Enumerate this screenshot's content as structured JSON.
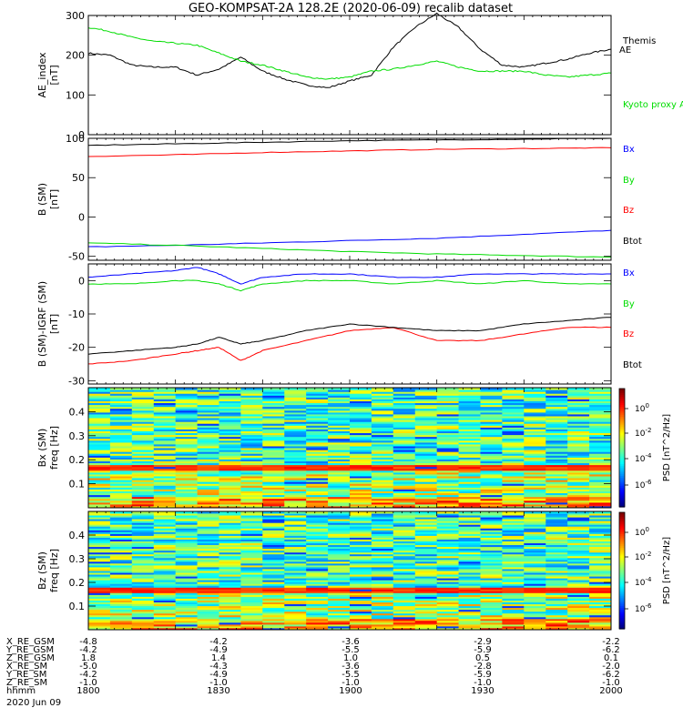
{
  "title": "GEO-KOMPSAT-2A 128.2E (2020-06-09) recalib dataset",
  "colors": {
    "black": "#000000",
    "red": "#ff0000",
    "green": "#00dd00",
    "blue": "#0000ff"
  },
  "chart_data": [
    {
      "type": "line",
      "ylabel": [
        "AE_index",
        "[nT]"
      ],
      "ylim": [
        0,
        300
      ],
      "yticks": [
        0,
        100,
        200,
        300
      ],
      "xlim_min": [
        0,
        120
      ],
      "series": [
        {
          "name": "Themis AE",
          "color": "black",
          "x": [
            0,
            5,
            10,
            15,
            20,
            25,
            30,
            35,
            40,
            45,
            50,
            55,
            60,
            65,
            70,
            75,
            80,
            85,
            90,
            95,
            100,
            105,
            110,
            115,
            120
          ],
          "y": [
            205,
            200,
            175,
            170,
            170,
            150,
            165,
            195,
            160,
            140,
            125,
            118,
            135,
            150,
            220,
            270,
            305,
            270,
            215,
            175,
            170,
            180,
            190,
            205,
            215
          ]
        },
        {
          "name": "Kyoto proxy AE",
          "color": "green",
          "x": [
            0,
            5,
            10,
            15,
            20,
            25,
            30,
            35,
            40,
            45,
            50,
            55,
            60,
            65,
            70,
            75,
            80,
            85,
            90,
            95,
            100,
            105,
            110,
            115,
            120
          ],
          "y": [
            270,
            260,
            245,
            235,
            230,
            225,
            205,
            185,
            175,
            160,
            145,
            140,
            145,
            160,
            165,
            175,
            185,
            170,
            160,
            160,
            160,
            150,
            145,
            150,
            155
          ]
        }
      ]
    },
    {
      "type": "line",
      "ylabel": [
        "B (SM)",
        "[nT]"
      ],
      "ylim": [
        -55,
        100
      ],
      "yticks": [
        -50,
        0,
        50,
        100
      ],
      "series": [
        {
          "name": "Bx",
          "color": "blue",
          "x": [
            0,
            20,
            40,
            60,
            80,
            100,
            120
          ],
          "y": [
            -38,
            -36,
            -33,
            -30,
            -27,
            -22,
            -17
          ]
        },
        {
          "name": "By",
          "color": "green",
          "x": [
            0,
            20,
            40,
            60,
            80,
            100,
            120
          ],
          "y": [
            -33,
            -36,
            -40,
            -44,
            -47,
            -49,
            -51
          ]
        },
        {
          "name": "Bz",
          "color": "red",
          "x": [
            0,
            20,
            40,
            60,
            80,
            100,
            120
          ],
          "y": [
            77,
            79,
            82,
            84,
            86,
            87,
            88
          ]
        },
        {
          "name": "Btot",
          "color": "black",
          "x": [
            0,
            20,
            40,
            60,
            80,
            100,
            120
          ],
          "y": [
            91,
            93,
            95,
            97,
            98,
            99,
            100
          ]
        }
      ]
    },
    {
      "type": "line",
      "ylabel": [
        "B (SM)-IGRF (SM)",
        "[nT]"
      ],
      "ylim": [
        -31,
        5
      ],
      "yticks": [
        -30,
        -20,
        -10,
        0
      ],
      "series": [
        {
          "name": "Bx",
          "color": "blue",
          "x": [
            0,
            10,
            20,
            25,
            30,
            35,
            40,
            50,
            60,
            70,
            80,
            90,
            100,
            110,
            120
          ],
          "y": [
            1,
            2,
            3,
            4,
            2,
            -1,
            1,
            2,
            2,
            1,
            1,
            2,
            2,
            2,
            2
          ]
        },
        {
          "name": "By",
          "color": "green",
          "x": [
            0,
            10,
            20,
            25,
            30,
            35,
            40,
            50,
            60,
            70,
            80,
            90,
            100,
            110,
            120
          ],
          "y": [
            -1,
            -1,
            0,
            0,
            -1,
            -3,
            -1,
            0,
            0,
            -1,
            0,
            -1,
            0,
            -1,
            -1
          ]
        },
        {
          "name": "Bz",
          "color": "red",
          "x": [
            0,
            10,
            20,
            25,
            30,
            35,
            40,
            50,
            60,
            70,
            80,
            90,
            100,
            110,
            120
          ],
          "y": [
            -25,
            -24,
            -22,
            -21,
            -20,
            -24,
            -21,
            -18,
            -15,
            -14,
            -18,
            -18,
            -16,
            -14,
            -14
          ]
        },
        {
          "name": "Btot",
          "color": "black",
          "x": [
            0,
            10,
            20,
            25,
            30,
            35,
            40,
            50,
            60,
            70,
            80,
            90,
            100,
            110,
            120
          ],
          "y": [
            -22,
            -21,
            -20,
            -19,
            -17,
            -19,
            -18,
            -15,
            -13,
            -14,
            -15,
            -15,
            -13,
            -12,
            -11
          ]
        }
      ]
    },
    {
      "type": "heatmap",
      "ylabel": [
        "Bx (SM)",
        "freq [Hz]"
      ],
      "ylim": [
        0,
        0.5
      ],
      "yticks": [
        0.1,
        0.2,
        0.3,
        0.4
      ],
      "band_hz": 0.165,
      "colorbar": {
        "label": "PSD [nT^2/Hz]",
        "ticks": [
          "10^0",
          "10^-2",
          "10^-4",
          "10^-6"
        ]
      }
    },
    {
      "type": "heatmap",
      "ylabel": [
        "Bz (SM)",
        "freq [Hz]"
      ],
      "ylim": [
        0,
        0.5
      ],
      "yticks": [
        0.1,
        0.2,
        0.3,
        0.4
      ],
      "band_hz": 0.165,
      "colorbar": {
        "label": "PSD [nT^2/Hz]",
        "ticks": [
          "10^0",
          "10^-2",
          "10^-4",
          "10^-6"
        ]
      }
    }
  ],
  "orbit_table": {
    "rows": [
      {
        "label": "X_RE_GSM",
        "values": [
          "-4.8",
          "-4.2",
          "-3.6",
          "-2.9",
          "-2.2"
        ]
      },
      {
        "label": "Y_RE_GSM",
        "values": [
          "-4.2",
          "-4.9",
          "-5.5",
          "-5.9",
          "-6.2"
        ]
      },
      {
        "label": "Z_RE_GSM",
        "values": [
          "1.8",
          "1.4",
          "1.0",
          "0.5",
          "0.1"
        ]
      },
      {
        "label": "X_RE_SM",
        "values": [
          "-5.0",
          "-4.3",
          "-3.6",
          "-2.8",
          "-2.0"
        ]
      },
      {
        "label": "Y_RE_SM",
        "values": [
          "-4.2",
          "-4.9",
          "-5.5",
          "-5.9",
          "-6.2"
        ]
      },
      {
        "label": "Z_RE_SM",
        "values": [
          "-1.0",
          "-1.0",
          "-1.0",
          "-1.0",
          "-1.0"
        ]
      },
      {
        "label": "hhmm",
        "values": [
          "1800",
          "1830",
          "1900",
          "1930",
          "2000"
        ]
      }
    ],
    "date": "2020 Jun 09"
  }
}
